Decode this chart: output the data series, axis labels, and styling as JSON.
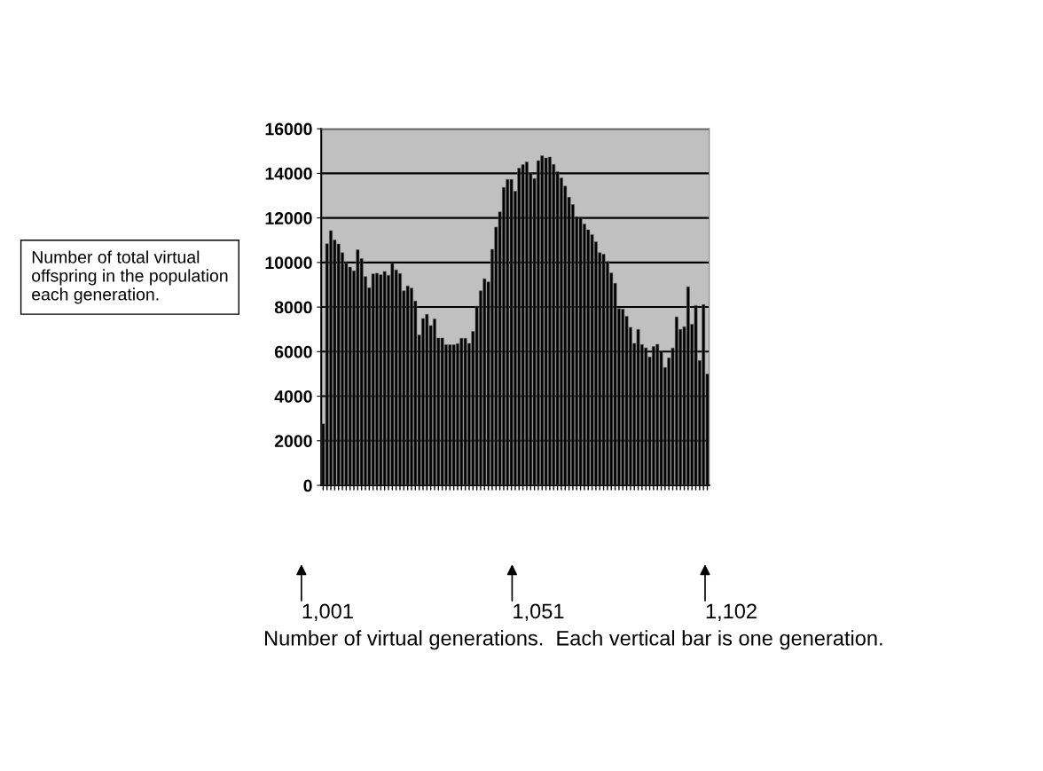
{
  "chart_data": {
    "type": "bar",
    "ylabel": "Number of total virtual offspring in the population each generation.",
    "annotations": [
      "1,001",
      "1,051",
      "1,102",
      "Number of virtual generations.  Each vertical bar is one generation."
    ],
    "categories": [
      null,
      null,
      null,
      null,
      null,
      null,
      null,
      null,
      null,
      null,
      null,
      null,
      null,
      null,
      null,
      null,
      null,
      null,
      null,
      null,
      null,
      null,
      null,
      null,
      null,
      null,
      null,
      null,
      null,
      null,
      null,
      null,
      null,
      null,
      null,
      null,
      null,
      null,
      null,
      null,
      null,
      null,
      null,
      null,
      null,
      null,
      null,
      null,
      null,
      null,
      null,
      null,
      null,
      null,
      null,
      null,
      null,
      null,
      null,
      null,
      null,
      null,
      null,
      null,
      null,
      null,
      null,
      null,
      null,
      null,
      null,
      null,
      null,
      null,
      null,
      null,
      null,
      null,
      null,
      null,
      null,
      null,
      null,
      null,
      null,
      null,
      null,
      null,
      null,
      null,
      null,
      null,
      null,
      null,
      null,
      null,
      null,
      null,
      null,
      null,
      null
    ],
    "values": [
      2760,
      10840,
      11430,
      11010,
      10830,
      10440,
      9970,
      9790,
      9630,
      10570,
      10170,
      9370,
      8870,
      9490,
      9520,
      9450,
      9600,
      9430,
      9960,
      9670,
      9510,
      8730,
      8950,
      8850,
      8270,
      6750,
      7490,
      7670,
      7170,
      7470,
      6610,
      6610,
      6310,
      6310,
      6310,
      6360,
      6600,
      6600,
      6370,
      6910,
      8040,
      8730,
      9270,
      9130,
      10590,
      11590,
      12270,
      13370,
      13730,
      13730,
      13200,
      14230,
      14390,
      14510,
      14030,
      13770,
      14570,
      14790,
      14690,
      14730,
      14400,
      14070,
      13800,
      13430,
      12930,
      12600,
      12050,
      12030,
      11730,
      11470,
      11250,
      10930,
      10440,
      10370,
      10040,
      9530,
      9070,
      7930,
      7910,
      7590,
      7090,
      6370,
      7000,
      6320,
      6170,
      5760,
      6230,
      6330,
      6030,
      5290,
      5720,
      6160,
      7560,
      7000,
      7120,
      8910,
      7230,
      8070,
      5600,
      8110,
      5000
    ],
    "color": "#000000",
    "ylim": [
      0,
      16000
    ],
    "yticks": [
      0,
      2000,
      4000,
      6000,
      8000,
      10000,
      12000,
      14000,
      16000
    ],
    "grid": "y"
  }
}
